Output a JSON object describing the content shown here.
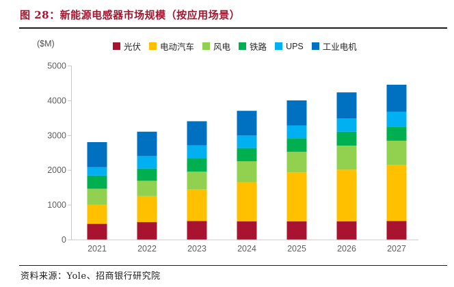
{
  "header": {
    "title": "图 28：新能源电感器市场规模（按应用场景）"
  },
  "footer": {
    "source": "资料来源：Yole、招商银行研究院"
  },
  "theme": {
    "title_color": "#A5152F",
    "rule_color": "#1a1a1a",
    "axis_color": "#c8c8c8",
    "tick_label_color": "#5f5f5f"
  },
  "chart_data": {
    "type": "bar",
    "stacked": true,
    "title": "新能源电感器市场规模（按应用场景）",
    "unit_label": "($M)",
    "categories": [
      "2021",
      "2022",
      "2023",
      "2024",
      "2025",
      "2026",
      "2027"
    ],
    "series": [
      {
        "key": "pv",
        "name": "光伏",
        "color": "#A81430",
        "values": [
          450,
          500,
          530,
          520,
          520,
          520,
          530
        ]
      },
      {
        "key": "ev",
        "name": "电动汽车",
        "color": "#FFC000",
        "values": [
          550,
          750,
          910,
          1130,
          1410,
          1490,
          1620
        ]
      },
      {
        "key": "wind",
        "name": "风电",
        "color": "#92D050",
        "values": [
          460,
          440,
          510,
          600,
          590,
          690,
          690
        ]
      },
      {
        "key": "rail",
        "name": "铁路",
        "color": "#00B050",
        "values": [
          380,
          350,
          390,
          380,
          390,
          400,
          400
        ]
      },
      {
        "key": "ups",
        "name": "UPS",
        "color": "#00B0F0",
        "values": [
          240,
          360,
          370,
          360,
          370,
          380,
          430
        ]
      },
      {
        "key": "motor",
        "name": "工业电机",
        "color": "#0070C0",
        "values": [
          720,
          700,
          690,
          710,
          720,
          750,
          780
        ]
      }
    ],
    "y_ticks": [
      0,
      1000,
      2000,
      3000,
      4000,
      5000
    ],
    "ylim": [
      0,
      5000
    ],
    "xlabel": "",
    "ylabel": "($M)",
    "legend_position": "top",
    "gridlines": false
  }
}
